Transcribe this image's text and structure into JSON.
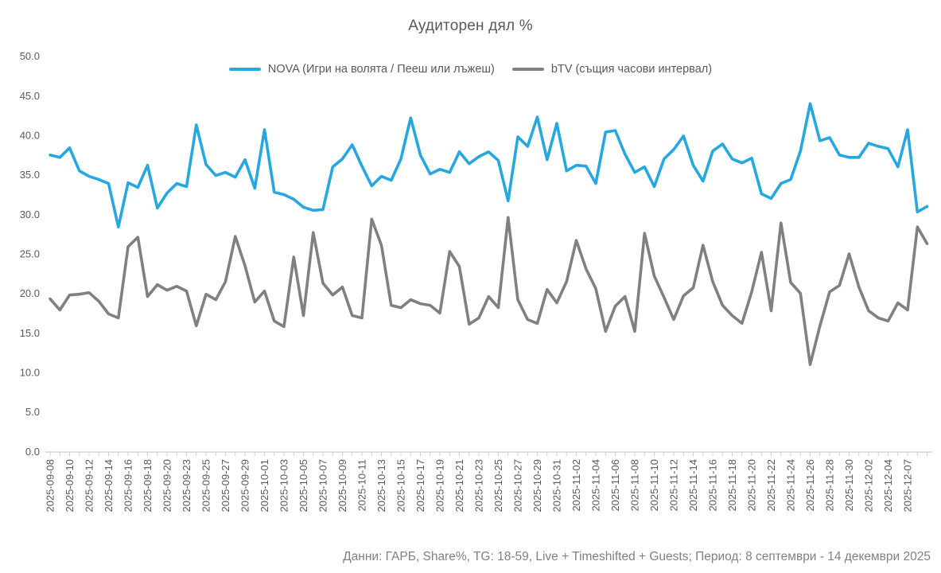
{
  "chart": {
    "title": "Аудиторен дял %",
    "legend": [
      {
        "label": "NOVA (Игри на волята / Пееш или лъжеш)",
        "color": "#27A7E0"
      },
      {
        "label": "bTV (същия часови интервал)",
        "color": "#808080"
      }
    ],
    "footer": "Данни: ГАРБ, Share%, TG: 18-59, Live + Timeshifted + Guests; Период: 8 септември - 14 декември 2025"
  },
  "chart_data": {
    "type": "line",
    "title": "Аудиторен дял %",
    "xlabel": "",
    "ylabel": "",
    "ylim": [
      0,
      50
    ],
    "y_ticks": [
      0,
      5,
      10,
      15,
      20,
      25,
      30,
      35,
      40,
      45,
      50
    ],
    "grid": false,
    "legend_position": "top",
    "label_every": 2,
    "x_tick_labels": [
      "2025-09-08",
      "2025-09-10",
      "2025-09-12",
      "2025-09-14",
      "2025-09-16",
      "2025-09-18",
      "2025-09-20",
      "2025-09-23",
      "2025-09-25",
      "2025-09-27",
      "2025-09-29",
      "2025-10-01",
      "2025-10-03",
      "2025-10-05",
      "2025-10-07",
      "2025-10-09",
      "2025-10-11",
      "2025-10-13",
      "2025-10-15",
      "2025-10-17",
      "2025-10-19",
      "2025-10-21",
      "2025-10-23",
      "2025-10-25",
      "2025-10-27",
      "2025-10-29",
      "2025-10-31",
      "2025-11-02",
      "2025-11-04",
      "2025-11-06",
      "2025-11-08",
      "2025-11-10",
      "2025-11-12",
      "2025-11-14",
      "2025-11-16",
      "2025-11-18",
      "2025-11-20",
      "2025-11-22",
      "2025-11-24",
      "2025-11-26",
      "2025-11-28",
      "2025-11-30",
      "2025-12-02",
      "2025-12-04",
      "2025-12-07"
    ],
    "series": [
      {
        "name": "NOVA (Игри на волята / Пееш или лъжеш)",
        "key": "nova-line",
        "color": "#27A7E0",
        "values": [
          37.5,
          37.2,
          38.4,
          35.5,
          34.8,
          34.4,
          33.9,
          28.4,
          34.0,
          33.4,
          36.2,
          30.8,
          32.7,
          33.9,
          33.5,
          41.3,
          36.3,
          34.9,
          35.3,
          34.7,
          36.9,
          33.3,
          40.7,
          32.8,
          32.5,
          31.9,
          30.9,
          30.5,
          30.6,
          36.0,
          37.0,
          38.8,
          36.1,
          33.6,
          34.8,
          34.3,
          37.0,
          42.2,
          37.5,
          35.1,
          35.7,
          35.3,
          37.9,
          36.4,
          37.3,
          37.9,
          36.8,
          31.7,
          39.8,
          38.6,
          42.3,
          36.9,
          41.5,
          35.5,
          36.2,
          36.1,
          33.9,
          40.4,
          40.6,
          37.6,
          35.3,
          36.0,
          33.5,
          37.0,
          38.2,
          39.9,
          36.2,
          34.2,
          38.0,
          38.9,
          37.0,
          36.5,
          37.1,
          32.6,
          32.0,
          33.9,
          34.4,
          38.0,
          44.0,
          39.3,
          39.7,
          37.5,
          37.2,
          37.2,
          39.0,
          38.6,
          38.3,
          36.0,
          40.7,
          30.3,
          31.0
        ]
      },
      {
        "name": "bTV (същия часови интервал)",
        "key": "btv-line",
        "color": "#808080",
        "values": [
          19.3,
          17.9,
          19.8,
          19.9,
          20.1,
          19.0,
          17.4,
          16.9,
          25.9,
          27.1,
          19.6,
          21.1,
          20.4,
          20.9,
          20.3,
          15.9,
          19.9,
          19.2,
          21.5,
          27.2,
          23.5,
          18.9,
          20.3,
          16.5,
          15.8,
          24.6,
          17.2,
          27.7,
          21.3,
          19.8,
          20.8,
          17.2,
          16.9,
          29.4,
          26.1,
          18.5,
          18.2,
          19.2,
          18.7,
          18.5,
          17.5,
          25.3,
          23.4,
          16.1,
          16.9,
          19.6,
          18.2,
          29.6,
          19.2,
          16.7,
          16.2,
          20.5,
          18.8,
          21.5,
          26.7,
          23.1,
          20.6,
          15.2,
          18.4,
          19.6,
          15.2,
          27.6,
          22.2,
          19.5,
          16.7,
          19.7,
          20.7,
          26.1,
          21.5,
          18.5,
          17.2,
          16.2,
          20.2,
          25.2,
          17.8,
          28.9,
          21.4,
          20.0,
          11.0,
          15.9,
          20.2,
          21.0,
          25.0,
          20.8,
          17.8,
          16.9,
          16.5,
          18.8,
          17.9,
          28.4,
          26.3
        ]
      }
    ]
  }
}
